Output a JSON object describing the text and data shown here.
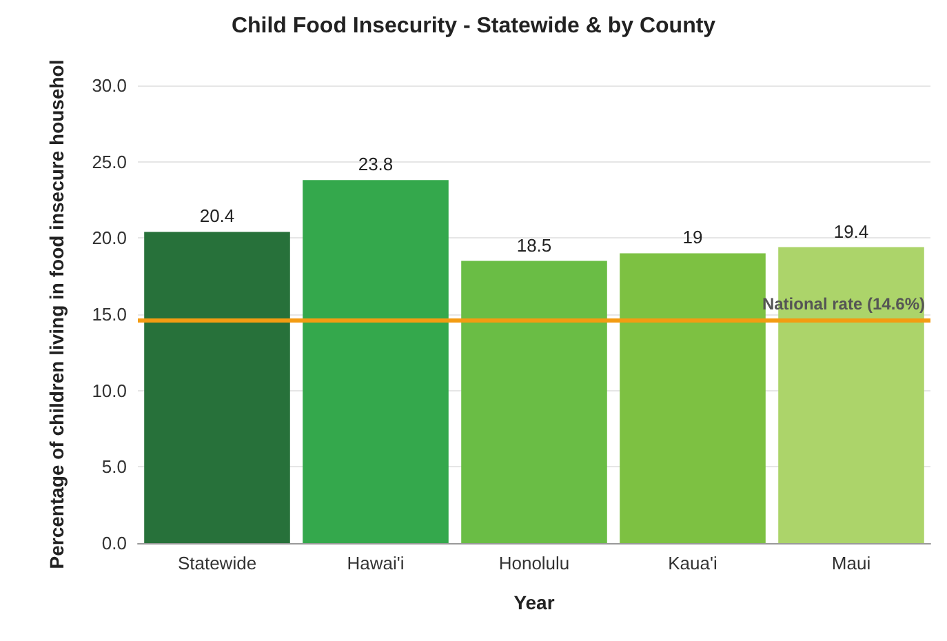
{
  "chart_data": {
    "type": "bar",
    "title": "Child Food Insecurity - Statewide & by County",
    "xlabel": "Year",
    "ylabel": "Percentage of children living in food insecure househol",
    "categories": [
      "Statewide",
      "Hawai'i",
      "Honolulu",
      "Kaua'i",
      "Maui"
    ],
    "values": [
      20.4,
      23.8,
      18.5,
      19,
      19.4
    ],
    "colors": [
      "#27713a",
      "#34a84c",
      "#6abd45",
      "#7dc142",
      "#acd46a"
    ],
    "ylim": [
      0,
      30
    ],
    "yticks": [
      {
        "value": 0,
        "label": "0.0"
      },
      {
        "value": 5,
        "label": "5.0"
      },
      {
        "value": 10,
        "label": "10.0"
      },
      {
        "value": 15,
        "label": "15.0"
      },
      {
        "value": 20,
        "label": "20.0"
      },
      {
        "value": 25,
        "label": "25.0"
      },
      {
        "value": 30,
        "label": "30.0"
      }
    ],
    "grid": "y",
    "data_labels": true,
    "ref_lines": [
      {
        "axis": "y",
        "value": 14.6,
        "label": "National rate (14.6%)",
        "color": "#f39c12",
        "line_style": "solid"
      }
    ]
  }
}
